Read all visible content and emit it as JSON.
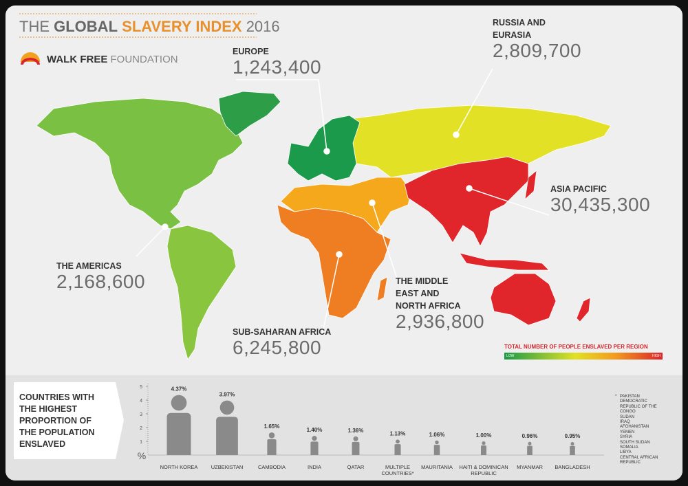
{
  "header": {
    "title_prefix": "THE",
    "title_main": "GLOBAL",
    "title_highlight": "SLAVERY INDEX",
    "title_year": "2016",
    "logo_bold": "WALK FREE",
    "logo_light": "FOUNDATION"
  },
  "regions": [
    {
      "name": "EUROPE",
      "value": "1,243,400"
    },
    {
      "name": "RUSSIA AND EURASIA",
      "value": "2,809,700"
    },
    {
      "name": "ASIA PACIFIC",
      "value": "30,435,300"
    },
    {
      "name": "THE AMERICAS",
      "value": "2,168,600"
    },
    {
      "name": "SUB-SAHARAN AFRICA",
      "value": "6,245,800"
    },
    {
      "name": "THE MIDDLE EAST AND NORTH AFRICA",
      "value": "2,936,800"
    }
  ],
  "legend": {
    "title": "TOTAL NUMBER OF PEOPLE ENSLAVED PER REGION",
    "low": "LOW",
    "high": "HIGH"
  },
  "chart_data": {
    "type": "pictogram",
    "title": "COUNTRIES WITH THE HIGHEST PROPORTION OF THE POPULATION ENSLAVED",
    "categories": [
      "NORTH KOREA",
      "UZBEKISTAN",
      "CAMBODIA",
      "INDIA",
      "QATAR",
      "MULTIPLE COUNTRIES*",
      "MAURITANIA",
      "HAITI & DOMINICAN REPUBLIC",
      "MYANMAR",
      "BANGLADESH"
    ],
    "values": [
      4.37,
      3.97,
      1.65,
      1.4,
      1.36,
      1.13,
      1.06,
      1.0,
      0.96,
      0.95
    ],
    "value_labels": [
      "4.37%",
      "3.97%",
      "1.65%",
      "1.40%",
      "1.36%",
      "1.13%",
      "1.06%",
      "1.00%",
      "0.96%",
      "0.95%"
    ],
    "color": "#8a8a8a",
    "ylim": [
      0,
      5
    ],
    "yticks": [
      1,
      2,
      3,
      4,
      5
    ],
    "y_label": "%"
  },
  "footnote": {
    "marker": "*",
    "countries": [
      "PAKISTAN",
      "DEMOCRATIC REPUBLIC OF THE CONGO",
      "SUDAN",
      "IRAQ",
      "AFGHANISTAN",
      "YEMEN",
      "SYRIA",
      "SOUTH SUDAN",
      "SOMALIA",
      "LIBYA",
      "CENTRAL AFRICAN REPUBLIC"
    ]
  }
}
